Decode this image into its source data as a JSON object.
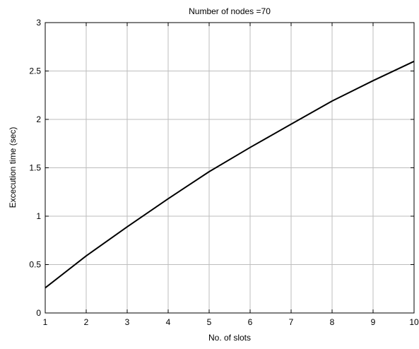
{
  "chart_data": {
    "type": "line",
    "title": "Number of nodes =70",
    "xlabel": "No. of slots",
    "ylabel": "Excecution time (sec)",
    "xlim": [
      1,
      10
    ],
    "ylim": [
      0,
      3
    ],
    "xticks": [
      1,
      2,
      3,
      4,
      5,
      6,
      7,
      8,
      9,
      10
    ],
    "yticks": [
      0,
      0.5,
      1,
      1.5,
      2,
      2.5,
      3
    ],
    "xtick_labels": [
      "1",
      "2",
      "3",
      "4",
      "5",
      "6",
      "7",
      "8",
      "9",
      "10"
    ],
    "ytick_labels": [
      "0",
      "0.5",
      "1",
      "1.5",
      "2",
      "2.5",
      "3"
    ],
    "grid": true,
    "series": [
      {
        "color": "#000000",
        "x": [
          1,
          2,
          3,
          4,
          5,
          6,
          7,
          8,
          9,
          10
        ],
        "values": [
          0.26,
          0.59,
          0.89,
          1.18,
          1.46,
          1.71,
          1.95,
          2.19,
          2.4,
          2.6
        ]
      }
    ]
  }
}
